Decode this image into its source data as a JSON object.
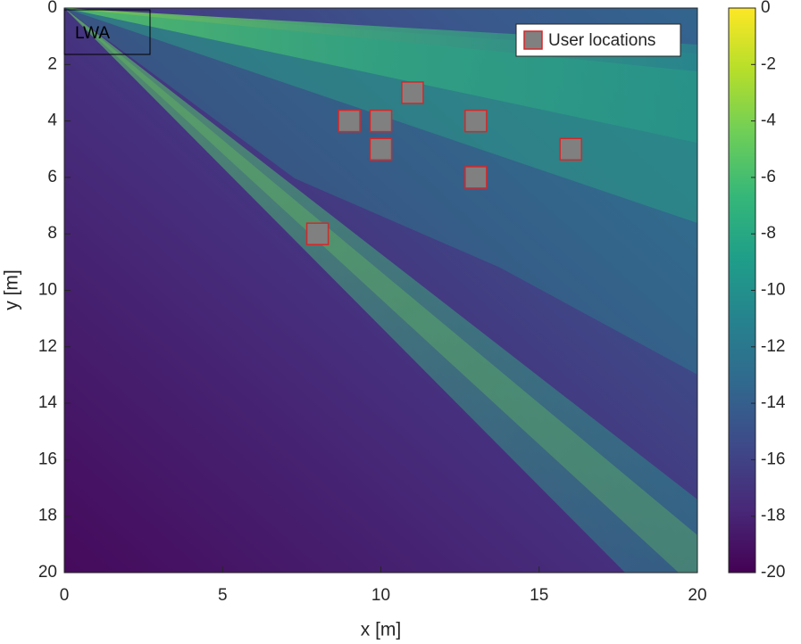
{
  "chart_data": {
    "type": "scatter",
    "xlabel": "x [m]",
    "ylabel": "y [m]",
    "xlim": [
      0,
      20
    ],
    "xticks": [
      0,
      5,
      10,
      15,
      20
    ],
    "ylim": [
      0,
      20
    ],
    "yticks": [
      0,
      2,
      4,
      6,
      8,
      10,
      12,
      14,
      16,
      18,
      20
    ],
    "y_reversed": true,
    "series": [
      {
        "name": "User locations",
        "color": "#808080",
        "edgecolor": "#d62728",
        "x": [
          8,
          9,
          10,
          10,
          11,
          13,
          13,
          16
        ],
        "values": [
          8,
          4,
          4,
          5,
          3,
          4,
          6,
          5
        ]
      }
    ],
    "legend": "top-right",
    "annotation": "LWA",
    "colorbar": {
      "colormap": "viridis",
      "clim": [
        -20,
        0
      ],
      "ticks": [
        -20,
        -18,
        -16,
        -14,
        -12,
        -10,
        -8,
        -6,
        -4,
        -2,
        0
      ]
    }
  }
}
